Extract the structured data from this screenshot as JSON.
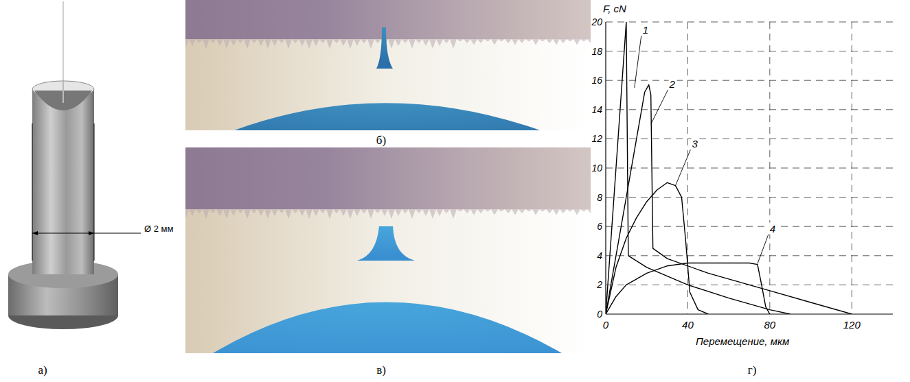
{
  "chart_data": {
    "type": "line",
    "x_label": "Перемещение, мкм",
    "y_label": "F, cN",
    "xlim": [
      0,
      140
    ],
    "xticks": [
      0,
      40,
      80,
      120
    ],
    "ylim": [
      0,
      20
    ],
    "yticks": [
      0,
      2,
      4,
      6,
      8,
      10,
      12,
      14,
      16,
      18,
      20
    ],
    "grid": true,
    "color": "#000000",
    "series": [
      {
        "name": "1",
        "x": [
          0,
          10,
          11,
          20,
          40,
          60,
          80,
          90
        ],
        "values": [
          0,
          20,
          4,
          3.2,
          2,
          1.1,
          0.3,
          0
        ]
      },
      {
        "name": "2",
        "x": [
          0,
          5,
          10,
          15,
          19,
          21,
          22,
          23,
          30,
          50,
          80,
          100,
          120
        ],
        "values": [
          0,
          4,
          8,
          12,
          15.2,
          15.7,
          15,
          4.5,
          3.8,
          2.8,
          1.6,
          0.8,
          0
        ]
      },
      {
        "name": "3",
        "x": [
          0,
          5,
          10,
          15,
          20,
          25,
          30,
          34,
          37,
          39,
          41,
          45,
          50
        ],
        "values": [
          0,
          3.2,
          5.2,
          6.6,
          7.7,
          8.5,
          9,
          8.8,
          8,
          5,
          1.5,
          0.3,
          0
        ]
      },
      {
        "name": "4",
        "x": [
          0,
          5,
          10,
          20,
          30,
          40,
          50,
          60,
          70,
          74,
          76,
          78,
          80
        ],
        "values": [
          0,
          1.2,
          2,
          2.8,
          3.3,
          3.5,
          3.5,
          3.5,
          3.5,
          3.4,
          2,
          0.5,
          0
        ]
      }
    ]
  },
  "panels": {
    "labels": [
      "а)",
      "б)",
      "в)",
      "г)"
    ],
    "dimension": "Ø 2 мм"
  }
}
